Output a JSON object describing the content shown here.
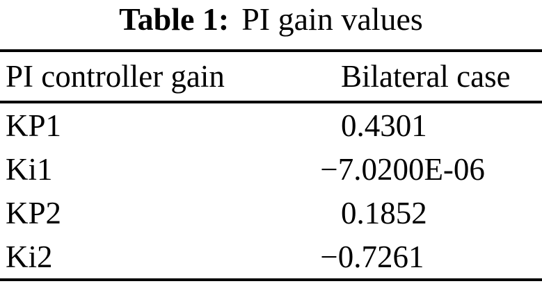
{
  "table": {
    "caption_label": "Table 1:",
    "caption_text": "PI gain values",
    "columns": [
      "PI controller gain",
      "Bilateral case"
    ],
    "rows": [
      {
        "gain": "KP1",
        "value": "0.4301"
      },
      {
        "gain": "Ki1",
        "value": "−7.0200E-06"
      },
      {
        "gain": "KP2",
        "value": "0.1852"
      },
      {
        "gain": "Ki2",
        "value": "−0.7261"
      }
    ]
  }
}
